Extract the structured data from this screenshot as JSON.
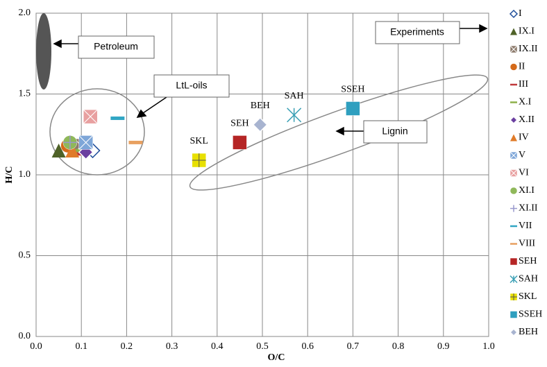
{
  "chart_data": {
    "type": "scatter",
    "xlabel": "O/C",
    "ylabel": "H/C",
    "xlim": [
      0,
      1
    ],
    "ylim": [
      0,
      2
    ],
    "xticks": [
      {
        "value": 0,
        "label": "0.0"
      },
      0.1,
      0.2,
      0.3,
      0.4,
      0.5,
      0.6,
      0.7,
      0.8,
      0.9,
      {
        "value": 1,
        "label": "1.0"
      }
    ],
    "yticks": [
      {
        "value": 0,
        "label": "0.0"
      },
      0.5,
      {
        "value": 1,
        "label": "1.0"
      },
      1.5,
      {
        "value": 2,
        "label": "2.0"
      }
    ],
    "grid": true,
    "annotations": [
      "Petroleum",
      "LtL-oils",
      "Lignin",
      "Experiments"
    ],
    "series": [
      {
        "name": "I",
        "color": "#1f4e9a",
        "marker": "diamond-open",
        "x": [
          0.125
        ],
        "values": [
          1.15
        ]
      },
      {
        "name": "IX.I",
        "color": "#4f6228",
        "marker": "triangle",
        "x": [
          0.05
        ],
        "values": [
          1.15
        ]
      },
      {
        "name": "IX.II",
        "color": "#8c7a6b",
        "marker": "box-x",
        "x": [
          0.1
        ],
        "values": [
          1.18
        ]
      },
      {
        "name": "II",
        "color": "#d46a1a",
        "marker": "circle",
        "x": [
          0.07
        ],
        "values": [
          1.18
        ]
      },
      {
        "name": "III",
        "color": "#c0393b",
        "marker": "dash",
        "x": [
          0.09
        ],
        "values": [
          1.13
        ]
      },
      {
        "name": "X.I",
        "color": "#8db04a",
        "marker": "dash",
        "x": [
          0.1
        ],
        "values": [
          1.15
        ]
      },
      {
        "name": "X.II",
        "color": "#6b3fa0",
        "marker": "diamond",
        "x": [
          0.11
        ],
        "values": [
          1.14
        ]
      },
      {
        "name": "IV",
        "color": "#e07b29",
        "marker": "triangle",
        "x": [
          0.08
        ],
        "values": [
          1.15
        ]
      },
      {
        "name": "V",
        "color": "#7ea6d8",
        "marker": "box-x",
        "x": [
          0.11
        ],
        "values": [
          1.2
        ]
      },
      {
        "name": "VI",
        "color": "#e8a0a0",
        "marker": "box-x",
        "x": [
          0.12
        ],
        "values": [
          1.36
        ]
      },
      {
        "name": "XI.I",
        "color": "#8fb85a",
        "marker": "circle",
        "x": [
          0.075
        ],
        "values": [
          1.2
        ]
      },
      {
        "name": "XI.II",
        "color": "#9999cc",
        "marker": "plus",
        "x": [
          0.075
        ],
        "values": [
          1.2
        ]
      },
      {
        "name": "VII",
        "color": "#31a6c4",
        "marker": "dash",
        "x": [
          0.18
        ],
        "values": [
          1.35
        ]
      },
      {
        "name": "VIII",
        "color": "#e8a060",
        "marker": "dash",
        "x": [
          0.22
        ],
        "values": [
          1.2
        ]
      },
      {
        "name": "SEH",
        "color": "#b52525",
        "marker": "box",
        "x": [
          0.45
        ],
        "values": [
          1.2
        ],
        "point_label": true
      },
      {
        "name": "SAH",
        "color": "#3aa0b5",
        "marker": "asterisk",
        "x": [
          0.57
        ],
        "values": [
          1.37
        ],
        "point_label": true
      },
      {
        "name": "SKL",
        "color": "#e8e000",
        "marker": "box-plus",
        "x": [
          0.36
        ],
        "values": [
          1.09
        ],
        "point_label": true
      },
      {
        "name": "SSEH",
        "color": "#2f9fbf",
        "marker": "box",
        "x": [
          0.7
        ],
        "values": [
          1.41
        ],
        "point_label": true
      },
      {
        "name": "BEH",
        "color": "#a8b4d0",
        "marker": "diamond",
        "x": [
          0.495
        ],
        "values": [
          1.31
        ],
        "point_label": true
      }
    ]
  }
}
